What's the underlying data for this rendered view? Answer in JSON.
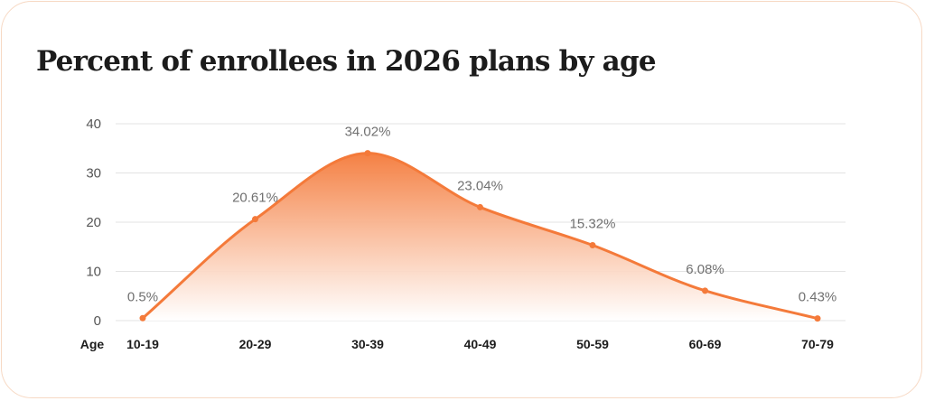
{
  "chart_data": {
    "type": "area",
    "title": "Percent of enrollees in 2026 plans by age",
    "xlabel": "Age",
    "ylabel": "",
    "categories": [
      "10-19",
      "20-29",
      "30-39",
      "40-49",
      "50-59",
      "60-69",
      "70-79"
    ],
    "series": [
      {
        "values": [
          0.5,
          20.61,
          34.02,
          23.04,
          15.32,
          6.08,
          0.43
        ],
        "labels": [
          "0.5%",
          "20.61%",
          "34.02%",
          "23.04%",
          "15.32%",
          "6.08%",
          "0.43%"
        ]
      }
    ],
    "yticks": [
      0,
      10,
      20,
      30,
      40
    ],
    "ylim": [
      0,
      40
    ],
    "grid": true,
    "legend": "none",
    "colors": {
      "line": "#f47a3a",
      "fill_top": "#f47a3a",
      "fill_bottom": "#ffffff"
    }
  }
}
